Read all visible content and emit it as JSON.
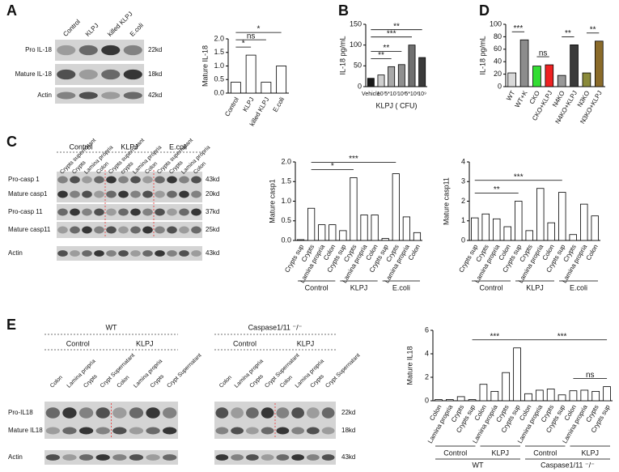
{
  "panels": [
    "A",
    "B",
    "C",
    "D",
    "E"
  ],
  "blots": [
    {
      "columns": [
        "Control",
        "KLPJ",
        "killed KLPJ",
        "E.coli"
      ],
      "rows": [
        "Pro IL-18",
        "Mature IL-18",
        "Actin"
      ],
      "sizes": [
        "22kd",
        "18kd",
        "42kd"
      ]
    },
    {
      "groups": [
        "Control",
        "KLPJ",
        "E.coli"
      ],
      "columns": [
        "Crypts supernatant",
        "Crypts",
        "Lamina propria",
        "Colon",
        "Crypts supernatant",
        "crypts",
        "Lamina propria",
        "Colon",
        "Crypts supernatant",
        "Crypts",
        "Lamina propria",
        "Colon"
      ],
      "rows": [
        "Pro-casp 1",
        "Mature casp1",
        "Pro-casp 11",
        "Mature casp11",
        "Actin"
      ],
      "sizes": [
        "43kd",
        "20kd",
        "37kd",
        "25kd",
        "43kd"
      ]
    },
    {
      "title": "WT",
      "groups": [
        "Control",
        "KLPJ"
      ],
      "columns": [
        "Colon",
        "Lamina propria",
        "Crypts",
        "Crypt Supernatant",
        "Colon",
        "Lamina propria",
        "Crypts",
        "Crypt Supernatant"
      ],
      "rows": [
        "Pro-IL18",
        "Mature IL18",
        "Actin"
      ]
    },
    {
      "title": "Caspase1/11 ⁻/⁻",
      "groups": [
        "Control",
        "KLPJ"
      ],
      "columns": [
        "Colon",
        "Lamina propria",
        "Crypts",
        "Crypt Supernatant",
        "Colon",
        "Lamina propria",
        "Crypts",
        "Crypt Supernatant"
      ],
      "sizes": [
        "22kd",
        "18kd",
        "43kd"
      ]
    }
  ],
  "chart_data": [
    {
      "type": "bar",
      "ylabel": "Mature IL-18",
      "categories": [
        "Control",
        "KLPJ",
        "killed KLPJ",
        "E.coli"
      ],
      "values": [
        0.4,
        1.4,
        0.4,
        1.0
      ],
      "color": "#ffffff",
      "ylim": [
        0,
        2
      ],
      "yticks": [
        {
          "value": 0,
          "label": "0.0"
        },
        0.5,
        {
          "value": 1,
          "label": "1.0"
        },
        1.5,
        {
          "value": 2,
          "label": "2.0"
        }
      ],
      "annotations": [
        {
          "text": "*",
          "between": [
            0,
            1
          ]
        },
        {
          "text": "ns",
          "between": [
            0,
            2
          ]
        },
        {
          "text": "*",
          "between": [
            0,
            3
          ]
        }
      ]
    },
    {
      "type": "bar",
      "ylabel": "IL-18 pg/mL",
      "xlabel": "KLPJ ( CFU)",
      "categories": [
        "Vehicle",
        "10⁷",
        "5*10⁷",
        "10⁸",
        "5*10⁸",
        "10⁹"
      ],
      "values": [
        20,
        28,
        48,
        53,
        100,
        70
      ],
      "colors": [
        "#1a1a1a",
        "#cfcfcf",
        "#a8a8a8",
        "#8f8f8f",
        "#707070",
        "#3a3a3a"
      ],
      "ylim": [
        0,
        150
      ],
      "yticks": [
        0,
        50,
        100,
        150
      ],
      "annotations": [
        {
          "text": "**",
          "between": [
            0,
            2
          ]
        },
        {
          "text": "**",
          "between": [
            0,
            3
          ]
        },
        {
          "text": "***",
          "between": [
            0,
            4
          ]
        },
        {
          "text": "**",
          "between": [
            0,
            5
          ]
        }
      ]
    },
    {
      "type": "bar",
      "ylabel": "IL-18 pg/mL",
      "categories": [
        "WT",
        "WT+K",
        "CKO",
        "CKO+KLPJ",
        "N4KO",
        "N4KO+KLPJ",
        "N3KO",
        "N3KO+KLPJ"
      ],
      "values": [
        22,
        75,
        33,
        35,
        18,
        67,
        22,
        73
      ],
      "colors": [
        "#d9d9d9",
        "#8c8c8c",
        "#33dd33",
        "#ee2222",
        "#999999",
        "#3a3a3a",
        "#8a8a3a",
        "#8b6b2a"
      ],
      "ylim": [
        0,
        100
      ],
      "yticks": [
        0,
        20,
        40,
        60,
        80,
        100
      ],
      "annotations": [
        {
          "text": "***",
          "between": [
            0,
            1
          ]
        },
        {
          "text": "ns",
          "between": [
            2,
            3
          ]
        },
        {
          "text": "**",
          "between": [
            4,
            5
          ]
        },
        {
          "text": "**",
          "between": [
            6,
            7
          ]
        }
      ]
    },
    {
      "type": "bar",
      "ylabel": "Mature casp1",
      "categories": [
        "Crypts sup",
        "Crypts",
        "Lamina propria",
        "Colon",
        "Crypts sup",
        "Crypts",
        "Lamina propria",
        "Colon",
        "Crypts sup",
        "Crypts",
        "Lamina propria",
        "Colon"
      ],
      "groups": [
        "Control",
        "KLPJ",
        "E.coli"
      ],
      "values": [
        0.02,
        0.82,
        0.4,
        0.4,
        0.25,
        1.6,
        0.65,
        0.65,
        0.05,
        1.7,
        0.6,
        0.2
      ],
      "color": "#ffffff",
      "ylim": [
        0,
        2
      ],
      "yticks": [
        {
          "value": 0,
          "label": "0.0"
        },
        0.5,
        {
          "value": 1,
          "label": "1.0"
        },
        1.5,
        {
          "value": 2,
          "label": "2.0"
        }
      ],
      "annotations": [
        {
          "text": "*",
          "between": [
            1,
            5
          ]
        },
        {
          "text": "***",
          "between": [
            1,
            9
          ]
        }
      ]
    },
    {
      "type": "bar",
      "ylabel": "Mature casp11",
      "categories": [
        "Crypts sup",
        "Crypts",
        "Lamina propria",
        "Colon",
        "Crypts sup",
        "Crypts",
        "Lamina propria",
        "Colon",
        "Crypts sup",
        "Crypts",
        "Lamina propria",
        "Colon"
      ],
      "groups": [
        "Control",
        "KLPJ",
        "E.coli"
      ],
      "values": [
        1.15,
        1.35,
        1.1,
        0.7,
        2.0,
        0.5,
        2.65,
        0.9,
        2.45,
        0.3,
        1.85,
        1.25
      ],
      "color": "#ffffff",
      "ylim": [
        0,
        4
      ],
      "yticks": [
        0,
        1,
        2,
        3,
        4
      ],
      "annotations": [
        {
          "text": "**",
          "between": [
            0,
            4
          ]
        },
        {
          "text": "***",
          "between": [
            0,
            8
          ]
        }
      ]
    },
    {
      "type": "bar",
      "ylabel": "Mature IL18",
      "categories": [
        "Colon",
        "Lamina propria",
        "Crypts",
        "Crypts sup",
        "Colon",
        "Lamina propria",
        "Crypts",
        "Crypts sup",
        "Colon",
        "Lamina propria",
        "Crypts",
        "Crypts sup",
        "Colon",
        "Lamina propria",
        "Crypts",
        "Crypts sup"
      ],
      "groups": [
        "Control",
        "KLPJ",
        "Control",
        "KLPJ"
      ],
      "supergroups": [
        "WT",
        "Caspase1/11 ⁻/⁻"
      ],
      "values": [
        0.1,
        0.1,
        0.35,
        0.1,
        1.4,
        0.8,
        2.4,
        4.5,
        0.6,
        0.9,
        1.0,
        0.5,
        0.85,
        0.9,
        0.8,
        1.2
      ],
      "color": "#ffffff",
      "ylim": [
        0,
        6
      ],
      "yticks": [
        0,
        2,
        4,
        6
      ],
      "annotations": [
        {
          "text": "***",
          "between": [
            3,
            7
          ]
        },
        {
          "text": "***",
          "between": [
            7,
            15
          ]
        },
        {
          "text": "ns",
          "between": [
            12,
            15
          ]
        }
      ]
    }
  ]
}
